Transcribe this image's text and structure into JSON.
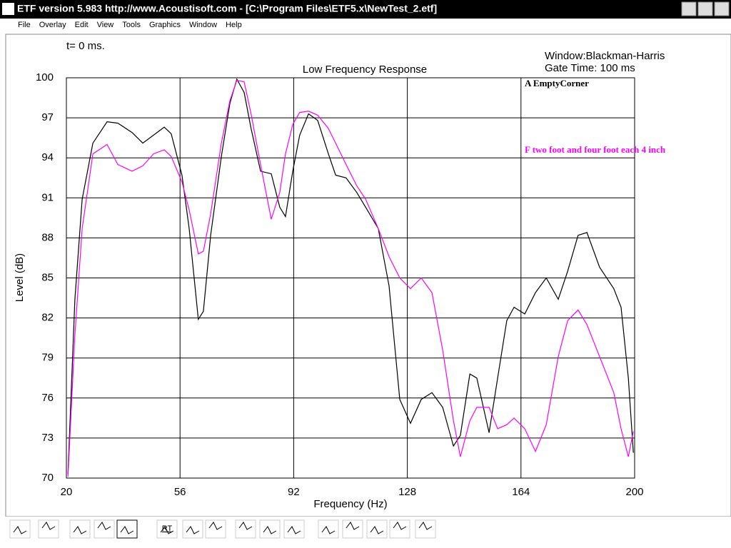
{
  "window": {
    "title": "ETF version 5.983 http://www.Acoustisoft.com - [C:\\Program Files\\ETF5.x\\NewTest_2.etf]",
    "menu": [
      "File",
      "Overlay",
      "Edit",
      "View",
      "Tools",
      "Graphics",
      "Window",
      "Help"
    ],
    "toolbar_labels": [
      "RT"
    ]
  },
  "chart_data": {
    "type": "line",
    "title": "Low Frequency Response",
    "x_label": "Frequency (Hz)",
    "y_label": "Level (dB)",
    "annotations": [
      "t= 0 ms.",
      "Window:Blackman-Harris",
      "Gate Time: 100 ms"
    ],
    "xlim": [
      20,
      200
    ],
    "xticks": [
      20,
      56,
      92,
      128,
      164,
      200
    ],
    "ylim": [
      70,
      100
    ],
    "yticks": [
      70,
      73,
      76,
      79,
      82,
      85,
      88,
      91,
      94,
      97,
      100
    ],
    "grid": true,
    "x": [
      20.5,
      22.7,
      25,
      28.4,
      32.9,
      36.3,
      40.8,
      44.2,
      47.6,
      51,
      53.2,
      56.6,
      58.9,
      61.8,
      63.4,
      65.7,
      69.1,
      71.8,
      74,
      76.3,
      78.5,
      81.5,
      84.9,
      87.6,
      89.4,
      91.7,
      93.9,
      96.7,
      99.6,
      103,
      105.3,
      108.6,
      112,
      114.8,
      118.8,
      122.2,
      125.6,
      129,
      132.4,
      135.8,
      139.2,
      142.6,
      144.8,
      147.8,
      150,
      153.9,
      156.6,
      159.5,
      161.8,
      165.2,
      168.6,
      172,
      175.8,
      178.8,
      182.1,
      184.9,
      188.9,
      193.4,
      195.7,
      198,
      199.6
    ],
    "series": [
      {
        "name": "A EmptyCorner",
        "color": "#000000",
        "values": [
          70.3,
          83.4,
          90.9,
          95.1,
          96.7,
          96.6,
          95.9,
          95.1,
          95.7,
          96.3,
          95.8,
          92.7,
          88.7,
          81.9,
          82.5,
          88.2,
          94.1,
          98.1,
          99.9,
          98.9,
          96.2,
          93,
          92.8,
          90.3,
          89.6,
          93,
          95.7,
          97.3,
          96.8,
          94.3,
          92.7,
          92.5,
          91.4,
          90.3,
          88.7,
          84.4,
          75.9,
          74.1,
          75.9,
          76.4,
          75.3,
          72.4,
          73.2,
          77.8,
          77.5,
          73.4,
          77.5,
          81.8,
          82.8,
          82.3,
          83.9,
          85,
          83.4,
          85.5,
          88.2,
          88.4,
          85.8,
          84.2,
          82.8,
          77.5,
          71.9
        ]
      },
      {
        "name": "F two foot and four foot each 4 inch",
        "color": "#ff00ff",
        "values": [
          70.1,
          80.7,
          88.7,
          94.3,
          95,
          93.5,
          93,
          93.4,
          94.3,
          94.6,
          94.1,
          92.2,
          90.1,
          86.8,
          87,
          89.8,
          95.1,
          98.3,
          99.8,
          99.7,
          97.3,
          93.5,
          89.4,
          91.4,
          94.3,
          96.5,
          97.4,
          97.5,
          97.2,
          96.2,
          95.1,
          93.5,
          91.9,
          90.9,
          88.7,
          86.6,
          85,
          84.2,
          85,
          83.9,
          79.6,
          74.3,
          71.6,
          74.3,
          75.3,
          75.3,
          73.7,
          74,
          74.5,
          73.7,
          72,
          74,
          79.1,
          81.8,
          82.6,
          81.5,
          79.1,
          76.4,
          73.7,
          71.6,
          73.5
        ]
      }
    ]
  }
}
